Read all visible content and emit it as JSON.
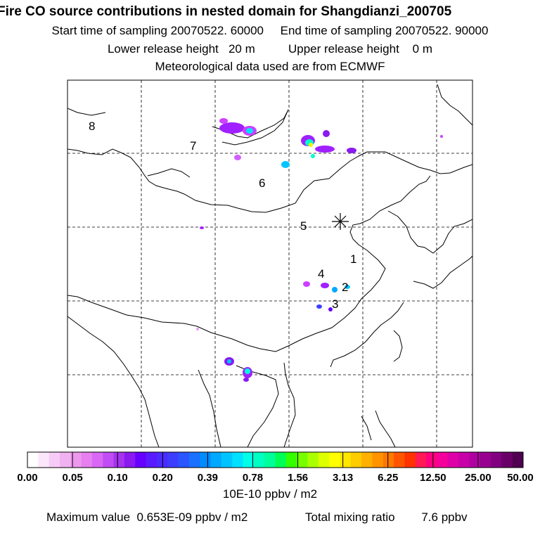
{
  "header": {
    "title": "Fire CO source contributions in nested domain for Shangdianzi_200705",
    "sampling": "Start time of sampling 20070522. 60000     End time of sampling 20070522. 90000",
    "release": "Lower release height   20 m          Upper release height    0 m",
    "met": "Meteorological data used are from ECMWF"
  },
  "map": {
    "region_labels": [
      "8",
      "7",
      "6",
      "5",
      "1",
      "4",
      "2",
      "3"
    ],
    "receptor_marker": "asterisk",
    "gridlines": "dashed"
  },
  "colorbar": {
    "tick_labels": [
      "0.00",
      "0.05",
      "0.10",
      "0.20",
      "0.39",
      "0.78",
      "1.56",
      "3.13",
      "6.25",
      "12.50",
      "25.00",
      "50.00"
    ],
    "colors": [
      "#ffffff",
      "#fbe6fb",
      "#f6ccf6",
      "#f1b2f1",
      "#ec98ec",
      "#e67fef",
      "#d966f5",
      "#c04cf5",
      "#a533f0",
      "#8a1af0",
      "#6600ff",
      "#5a1aff",
      "#4b2bff",
      "#3d3dff",
      "#2a55ff",
      "#1a70ff",
      "#008cff",
      "#00a8ff",
      "#00c4ff",
      "#00e0ff",
      "#00ffe6",
      "#00ffc0",
      "#00ff99",
      "#00ff55",
      "#33ff00",
      "#77ff00",
      "#aaff00",
      "#ddff00",
      "#ffff00",
      "#ffe600",
      "#ffcc00",
      "#ffb000",
      "#ff9400",
      "#ff7800",
      "#ff5500",
      "#ff3300",
      "#ff1a55",
      "#ff0080",
      "#f5009a",
      "#e000a8",
      "#c800a8",
      "#b000a0",
      "#980090",
      "#800080",
      "#680068",
      "#500050"
    ],
    "units": "10E-10 ppbv / m2"
  },
  "footer": {
    "max_value": "Maximum value  0.653E-09 ppbv / m2",
    "total_mixing": "Total mixing ratio        7.6 ppbv"
  }
}
